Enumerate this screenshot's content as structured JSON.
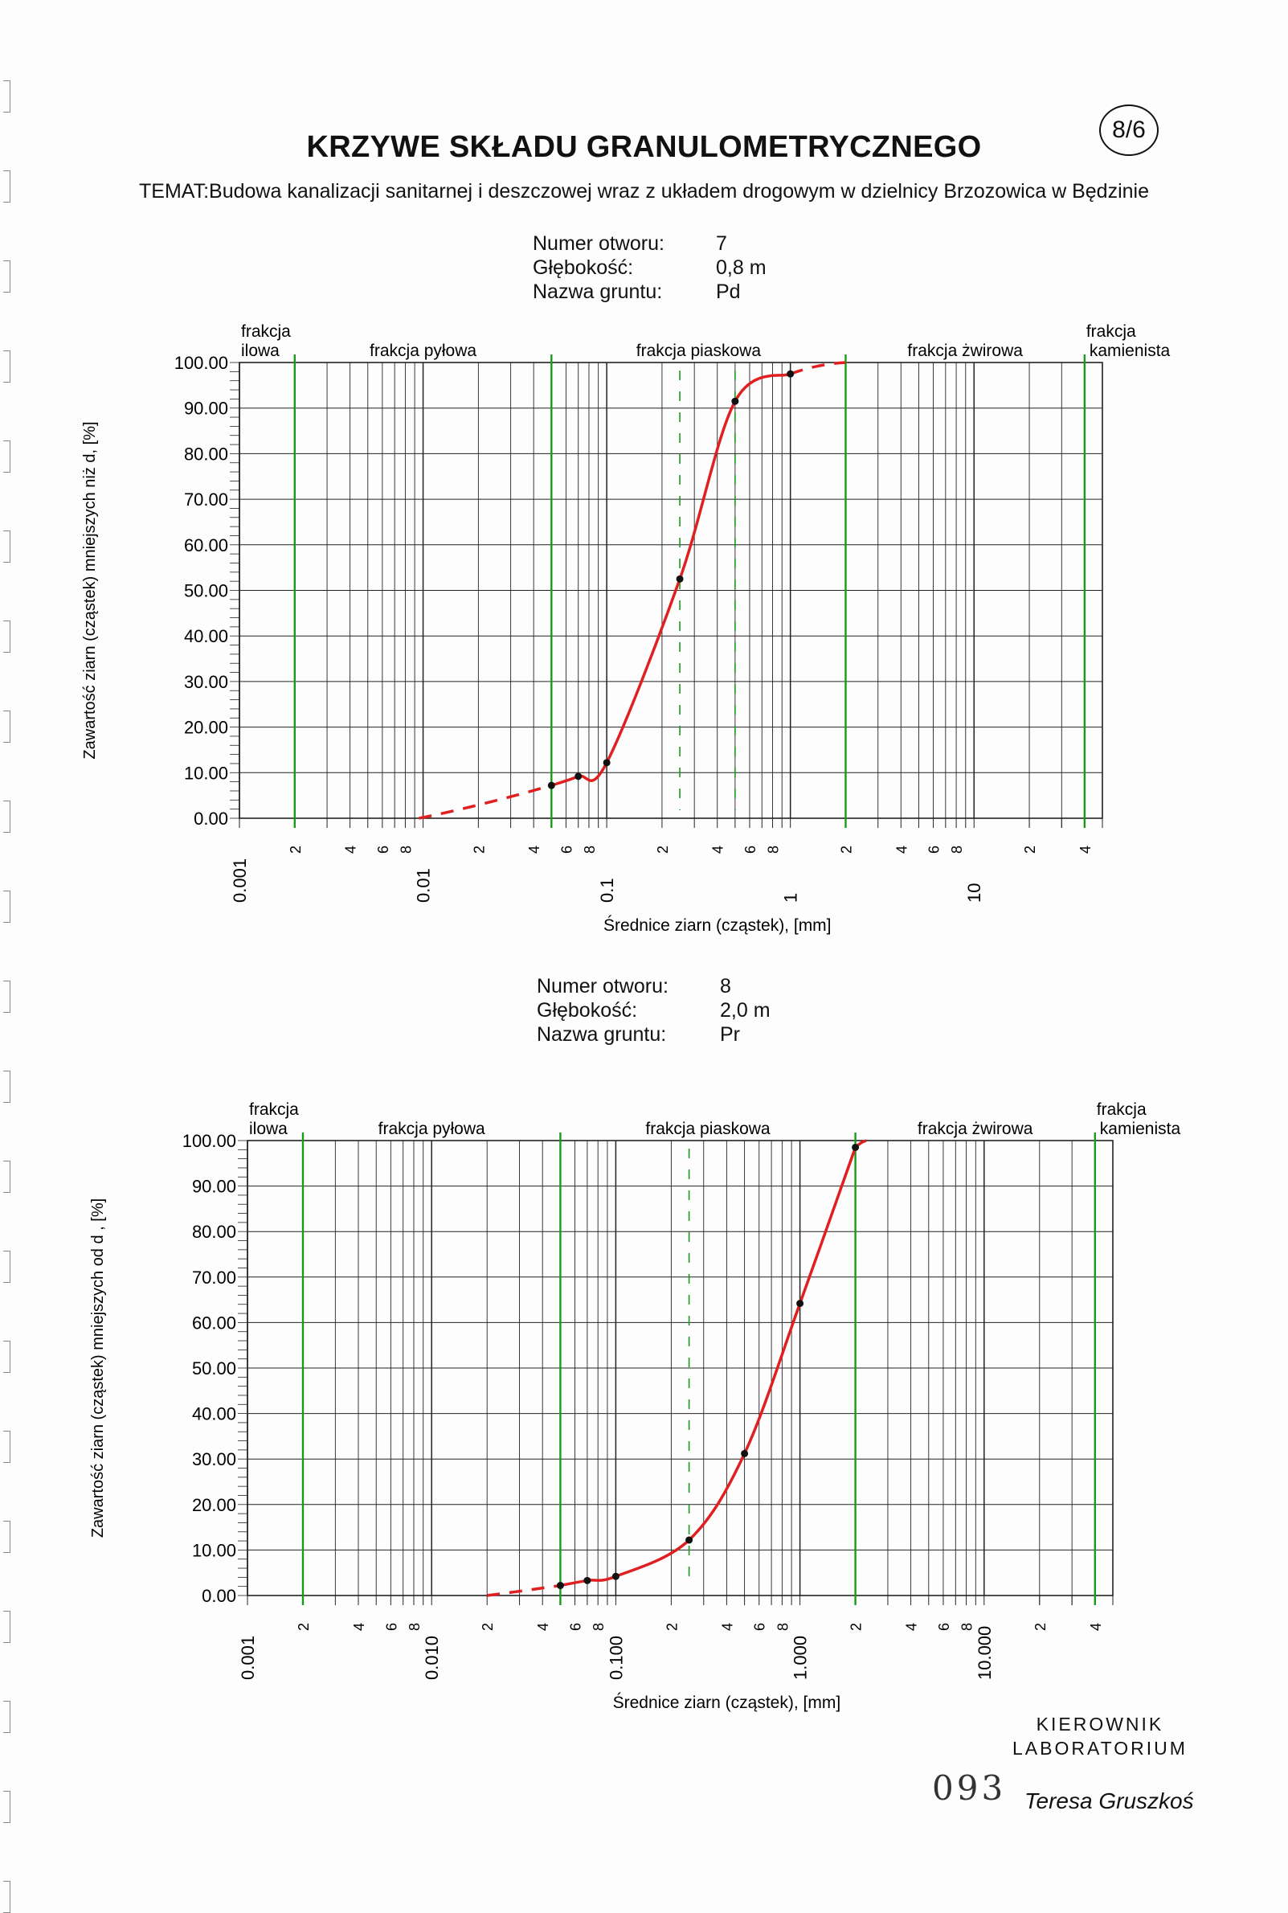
{
  "title": "KRZYWE SKŁADU GRANULOMETRYCZNEGO",
  "page_number": "8/6",
  "temat": "TEMAT:Budowa kanalizacji sanitarnej i deszczowej wraz z układem drogowym w dzielnicy Brzozowica w Będzinie",
  "labels": {
    "borehole": "Numer otworu:",
    "depth": "Głębokość:",
    "soil": "Nazwa gruntu:"
  },
  "samples": [
    {
      "borehole": "7",
      "depth": "0,8 m",
      "soil": "Pd"
    },
    {
      "borehole": "8",
      "depth": "2,0 m",
      "soil": "Pr"
    }
  ],
  "fractions": [
    "frakcja\nilowa",
    "frakcja pyłowa",
    "frakcja piaskowa",
    "frakcja żwirowa",
    "frakcja\nkamienista"
  ],
  "signature": {
    "line1": "KIEROWNIK",
    "line2": "LABORATORIUM",
    "name": "Teresa Gruszkoś"
  },
  "stamp_number": "093",
  "colors": {
    "curve": "#e02020",
    "fraction_line": "#1a9a1a",
    "grid": "#222222"
  },
  "chart_data": [
    {
      "type": "line",
      "xscale": "log",
      "xlim": [
        0.001,
        50
      ],
      "ylim": [
        0,
        100
      ],
      "ylabel": "Zawartość ziarn (cząstek) mniejszych niż d, [%]",
      "xlabel": "Średnice ziarn (cząstek), [mm]",
      "y_ticks": [
        "0.00",
        "10.00",
        "20.00",
        "30.00",
        "40.00",
        "50.00",
        "60.00",
        "70.00",
        "80.00",
        "90.00",
        "100.00"
      ],
      "x_major_labels": [
        "0.001",
        "0.01",
        "0.1",
        "1",
        "10"
      ],
      "x_minor_labels": [
        "2",
        "4",
        "6",
        "8"
      ],
      "fraction_boundaries": [
        0.002,
        0.05,
        2,
        40
      ],
      "dashed_verticals": [
        0.25,
        0.5
      ],
      "series": [
        {
          "x": [
            0.05,
            0.07,
            0.1,
            0.25,
            0.5,
            1.0
          ],
          "y": [
            7.2,
            9.2,
            12.2,
            52.5,
            91.5,
            97.5
          ]
        }
      ],
      "extrapolated": {
        "low": {
          "x": [
            0.0095,
            0.05
          ],
          "y": [
            0,
            7.2
          ]
        },
        "high": {
          "x": [
            1.0,
            2.0
          ],
          "y": [
            97.5,
            100
          ]
        }
      }
    },
    {
      "type": "line",
      "xscale": "log",
      "xlim": [
        0.001,
        50
      ],
      "ylim": [
        0,
        100
      ],
      "ylabel": "Zawartość ziarn (cząstek) mniejszych od d , [%]",
      "xlabel": "Średnice ziarn (cząstek), [mm]",
      "y_ticks": [
        "0.00",
        "10.00",
        "20.00",
        "30.00",
        "40.00",
        "50.00",
        "60.00",
        "70.00",
        "80.00",
        "90.00",
        "100.00"
      ],
      "x_major_labels": [
        "0.001",
        "0.010",
        "0.100",
        "1.000",
        "10.000"
      ],
      "x_minor_labels": [
        "2",
        "4",
        "6",
        "8"
      ],
      "fraction_boundaries": [
        0.002,
        0.05,
        2,
        40
      ],
      "dashed_verticals": [
        0.25
      ],
      "series": [
        {
          "x": [
            0.05,
            0.07,
            0.1,
            0.25,
            0.5,
            1.0,
            2.0
          ],
          "y": [
            2.2,
            3.3,
            4.2,
            12.2,
            31.2,
            64.2,
            98.5
          ]
        }
      ],
      "extrapolated": {
        "low": {
          "x": [
            0.02,
            0.05
          ],
          "y": [
            0,
            2.2
          ]
        },
        "high": {
          "x": [
            2.0,
            2.3
          ],
          "y": [
            98.5,
            100
          ]
        }
      }
    }
  ]
}
